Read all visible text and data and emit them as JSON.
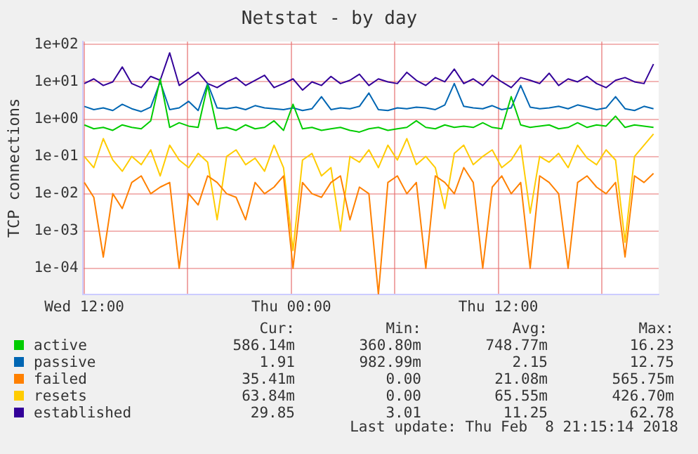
{
  "chart_data": {
    "type": "line",
    "title": "Netstat - by day",
    "ylabel": "TCP connections",
    "log": "y",
    "grid": true,
    "legend": "bottom",
    "marker": "none",
    "line_style": "solid",
    "x": [
      "2018-02-07T12:00",
      "2018-02-07T12:33",
      "2018-02-07T13:06",
      "2018-02-07T13:39",
      "2018-02-07T14:12",
      "2018-02-07T14:45",
      "2018-02-07T15:18",
      "2018-02-07T15:51",
      "2018-02-07T16:24",
      "2018-02-07T16:57",
      "2018-02-07T17:30",
      "2018-02-07T18:03",
      "2018-02-07T18:36",
      "2018-02-07T19:09",
      "2018-02-07T19:42",
      "2018-02-07T20:15",
      "2018-02-07T20:48",
      "2018-02-07T21:21",
      "2018-02-07T21:54",
      "2018-02-07T22:27",
      "2018-02-07T23:00",
      "2018-02-07T23:33",
      "2018-02-08T00:06",
      "2018-02-08T00:39",
      "2018-02-08T01:12",
      "2018-02-08T01:45",
      "2018-02-08T02:18",
      "2018-02-08T02:51",
      "2018-02-08T03:24",
      "2018-02-08T03:57",
      "2018-02-08T04:30",
      "2018-02-08T05:03",
      "2018-02-08T05:36",
      "2018-02-08T06:09",
      "2018-02-08T06:42",
      "2018-02-08T07:15",
      "2018-02-08T07:48",
      "2018-02-08T08:21",
      "2018-02-08T08:54",
      "2018-02-08T09:27",
      "2018-02-08T10:00",
      "2018-02-08T10:33",
      "2018-02-08T11:06",
      "2018-02-08T11:39",
      "2018-02-08T12:12",
      "2018-02-08T12:45",
      "2018-02-08T13:18",
      "2018-02-08T13:51",
      "2018-02-08T14:24",
      "2018-02-08T14:57",
      "2018-02-08T15:30",
      "2018-02-08T16:03",
      "2018-02-08T16:36",
      "2018-02-08T17:09",
      "2018-02-08T17:42",
      "2018-02-08T18:15",
      "2018-02-08T18:48",
      "2018-02-08T19:21",
      "2018-02-08T19:54",
      "2018-02-08T20:27",
      "2018-02-08T21:00"
    ],
    "xlim": [
      "2018-02-07T11:54",
      "2018-02-08T21:18"
    ],
    "xticks": [
      {
        "value": "2018-02-07T12:00",
        "label": "Wed 12:00"
      },
      {
        "value": "2018-02-07T18:00",
        "label": null
      },
      {
        "value": "2018-02-08T00:00",
        "label": "Thu 00:00"
      },
      {
        "value": "2018-02-08T06:00",
        "label": null
      },
      {
        "value": "2018-02-08T12:00",
        "label": "Thu 12:00"
      },
      {
        "value": "2018-02-08T18:00",
        "label": null
      }
    ],
    "ylim": [
      2e-05,
      120
    ],
    "yticks": [
      {
        "value": 0.0001,
        "label": "1e-04"
      },
      {
        "value": 0.001,
        "label": "1e-03"
      },
      {
        "value": 0.01,
        "label": "1e-02"
      },
      {
        "value": 0.1,
        "label": "1e-01"
      },
      {
        "value": 1,
        "label": "1e+00"
      },
      {
        "value": 10,
        "label": "1e+01"
      },
      {
        "value": 100,
        "label": "1e+02"
      }
    ],
    "series": [
      {
        "name": "active",
        "color": "#00cc00",
        "values": [
          0.7,
          0.55,
          0.6,
          0.5,
          0.7,
          0.6,
          0.55,
          0.9,
          12,
          0.6,
          0.8,
          0.65,
          0.6,
          8,
          0.55,
          0.6,
          0.5,
          0.7,
          0.55,
          0.6,
          0.9,
          0.5,
          2.5,
          0.55,
          0.6,
          0.5,
          0.55,
          0.6,
          0.5,
          0.45,
          0.55,
          0.6,
          0.5,
          0.55,
          0.6,
          0.9,
          0.6,
          0.55,
          0.7,
          0.6,
          0.65,
          0.6,
          0.8,
          0.6,
          0.55,
          4,
          0.7,
          0.6,
          0.65,
          0.7,
          0.55,
          0.6,
          0.8,
          0.6,
          0.7,
          0.65,
          1.2,
          0.6,
          0.7,
          0.65,
          0.6
        ]
      },
      {
        "name": "passive",
        "color": "#0066b3",
        "values": [
          2.2,
          1.8,
          2,
          1.7,
          2.5,
          1.9,
          1.6,
          2.1,
          10,
          1.8,
          2,
          3,
          1.7,
          9,
          2,
          1.9,
          2.1,
          1.8,
          2.3,
          2,
          1.9,
          1.8,
          2,
          1.7,
          1.9,
          4,
          1.8,
          2,
          1.9,
          2.2,
          5,
          1.8,
          1.7,
          2,
          1.9,
          2.1,
          2,
          1.8,
          2.4,
          9,
          2.2,
          2,
          1.9,
          2.3,
          1.8,
          2,
          8,
          2.1,
          1.9,
          2,
          2.2,
          1.9,
          2.4,
          2.1,
          1.8,
          2,
          4,
          1.9,
          1.7,
          2.2,
          1.9
        ]
      },
      {
        "name": "failed",
        "color": "#ff8000",
        "values": [
          0.02,
          0.008,
          0.0002,
          0.01,
          0.004,
          0.02,
          0.03,
          0.01,
          0.015,
          0.02,
          0.0001,
          0.01,
          0.005,
          0.03,
          0.02,
          0.01,
          0.008,
          0.002,
          0.02,
          0.01,
          0.015,
          0.03,
          0.0001,
          0.02,
          0.01,
          0.008,
          0.02,
          0.03,
          0.002,
          0.015,
          0.01,
          2e-05,
          0.02,
          0.03,
          0.01,
          0.02,
          0.0001,
          0.03,
          0.02,
          0.01,
          0.05,
          0.02,
          0.0001,
          0.015,
          0.03,
          0.01,
          0.02,
          0.0001,
          0.03,
          0.02,
          0.01,
          0.0001,
          0.02,
          0.03,
          0.015,
          0.01,
          0.02,
          0.0002,
          0.03,
          0.02,
          0.035
        ]
      },
      {
        "name": "resets",
        "color": "#ffcc00",
        "values": [
          0.1,
          0.05,
          0.3,
          0.08,
          0.04,
          0.1,
          0.06,
          0.15,
          0.03,
          0.2,
          0.08,
          0.05,
          0.12,
          0.07,
          0.002,
          0.1,
          0.15,
          0.06,
          0.09,
          0.04,
          0.2,
          0.05,
          0.0003,
          0.08,
          0.12,
          0.03,
          0.05,
          0.001,
          0.1,
          0.07,
          0.15,
          0.05,
          0.2,
          0.08,
          0.3,
          0.06,
          0.1,
          0.05,
          0.004,
          0.12,
          0.2,
          0.06,
          0.1,
          0.15,
          0.05,
          0.08,
          0.2,
          0.003,
          0.1,
          0.07,
          0.12,
          0.05,
          0.2,
          0.09,
          0.06,
          0.15,
          0.08,
          0.0005,
          0.1,
          0.2,
          0.4
        ]
      },
      {
        "name": "established",
        "color": "#330099",
        "values": [
          9,
          12,
          8,
          10,
          25,
          9,
          7,
          14,
          11,
          60,
          8,
          12,
          18,
          9,
          7,
          10,
          13,
          8,
          11,
          15,
          7,
          9,
          12,
          6,
          10,
          8,
          14,
          9,
          11,
          16,
          8,
          12,
          10,
          9,
          18,
          11,
          8,
          13,
          10,
          22,
          9,
          12,
          8,
          15,
          10,
          7,
          13,
          11,
          9,
          17,
          8,
          12,
          10,
          14,
          9,
          7,
          11,
          13,
          10,
          9,
          30
        ]
      }
    ],
    "annotations": [
      "Cur:",
      "Min:",
      "Avg:",
      "Max:",
      "586.14m",
      "360.80m",
      "748.77m",
      "16.23",
      "1.91",
      "982.99m",
      "2.15",
      "12.75",
      "35.41m",
      "0.00",
      "21.08m",
      "565.75m",
      "63.84m",
      "0.00",
      "65.55m",
      "426.70m",
      "29.85",
      "3.01",
      "11.25",
      "62.78",
      "Last update: Thu Feb  8 21:15:14 2018"
    ]
  }
}
